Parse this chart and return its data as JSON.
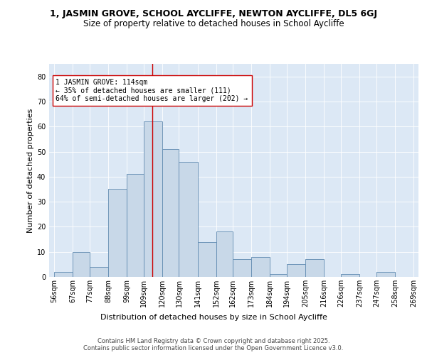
{
  "title_line1": "1, JASMIN GROVE, SCHOOL AYCLIFFE, NEWTON AYCLIFFE, DL5 6GJ",
  "title_line2": "Size of property relative to detached houses in School Aycliffe",
  "xlabel": "Distribution of detached houses by size in School Aycliffe",
  "ylabel": "Number of detached properties",
  "bin_labels": [
    "56sqm",
    "67sqm",
    "77sqm",
    "88sqm",
    "99sqm",
    "109sqm",
    "120sqm",
    "130sqm",
    "141sqm",
    "152sqm",
    "162sqm",
    "173sqm",
    "184sqm",
    "194sqm",
    "205sqm",
    "216sqm",
    "226sqm",
    "237sqm",
    "247sqm",
    "258sqm",
    "269sqm"
  ],
  "bin_edges": [
    56,
    67,
    77,
    88,
    99,
    109,
    120,
    130,
    141,
    152,
    162,
    173,
    184,
    194,
    205,
    216,
    226,
    237,
    247,
    258,
    269
  ],
  "bar_heights": [
    2,
    10,
    4,
    35,
    41,
    62,
    51,
    46,
    14,
    18,
    7,
    8,
    1,
    5,
    7,
    0,
    1,
    0,
    2,
    0,
    0
  ],
  "bar_color": "#c8d8e8",
  "bar_edge_color": "#5f8ab0",
  "vline_x": 114,
  "vline_color": "#cc0000",
  "annotation_text": "1 JASMIN GROVE: 114sqm\n← 35% of detached houses are smaller (111)\n64% of semi-detached houses are larger (202) →",
  "annotation_box_color": "#ffffff",
  "annotation_box_edge": "#cc0000",
  "ylim": [
    0,
    85
  ],
  "yticks": [
    0,
    10,
    20,
    30,
    40,
    50,
    60,
    70,
    80
  ],
  "plot_bg_color": "#dce8f5",
  "footer_text": "Contains HM Land Registry data © Crown copyright and database right 2025.\nContains public sector information licensed under the Open Government Licence v3.0.",
  "title_fontsize": 9,
  "subtitle_fontsize": 8.5,
  "axis_label_fontsize": 8,
  "tick_fontsize": 7,
  "annotation_fontsize": 7,
  "footer_fontsize": 6
}
